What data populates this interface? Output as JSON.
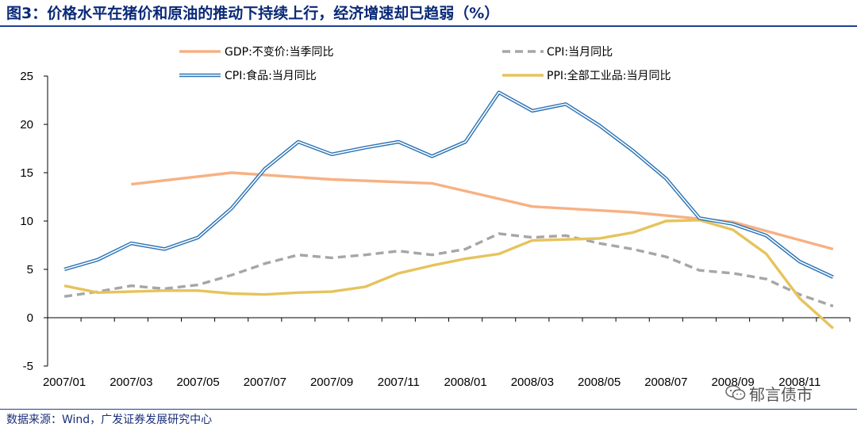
{
  "figure_title": "图3：价格水平在猪价和原油的推动下持续上行，经济增速却已趋弱（%）",
  "source_note": "数据来源：Wind，广发证券发展研究中心",
  "watermark": "郁言债市",
  "chart_data": {
    "type": "line",
    "ylim": [
      -5,
      25
    ],
    "yticks": [
      -5,
      0,
      5,
      10,
      15,
      20,
      25
    ],
    "x_tick_labels": [
      "2007/01",
      "2007/03",
      "2007/05",
      "2007/07",
      "2007/09",
      "2007/11",
      "2008/01",
      "2008/03",
      "2008/05",
      "2008/07",
      "2008/09",
      "2008/11"
    ],
    "x": [
      "2007/01",
      "2007/02",
      "2007/03",
      "2007/04",
      "2007/05",
      "2007/06",
      "2007/07",
      "2007/08",
      "2007/09",
      "2007/10",
      "2007/11",
      "2007/12",
      "2008/01",
      "2008/02",
      "2008/03",
      "2008/04",
      "2008/05",
      "2008/06",
      "2008/07",
      "2008/08",
      "2008/09",
      "2008/10",
      "2008/11",
      "2008/12"
    ],
    "series": [
      {
        "name": "GDP:不变价:当季同比",
        "color": "#f7b183",
        "style": "solid",
        "values": [
          null,
          null,
          13.8,
          null,
          null,
          15.0,
          null,
          null,
          14.3,
          null,
          null,
          13.9,
          null,
          null,
          11.5,
          null,
          null,
          10.9,
          null,
          null,
          9.9,
          null,
          null,
          7.1
        ]
      },
      {
        "name": "CPI:当月同比",
        "color": "#a6a6a6",
        "style": "dashed",
        "values": [
          2.2,
          2.7,
          3.3,
          3.0,
          3.4,
          4.4,
          5.6,
          6.5,
          6.2,
          6.5,
          6.9,
          6.5,
          7.1,
          8.7,
          8.3,
          8.5,
          7.7,
          7.1,
          6.3,
          4.9,
          4.6,
          4.0,
          2.4,
          1.2
        ]
      },
      {
        "name": "CPI:食品:当月同比",
        "color": "#2e75b6",
        "style": "double",
        "values": [
          5.0,
          6.0,
          7.7,
          7.1,
          8.3,
          11.3,
          15.4,
          18.2,
          16.9,
          17.6,
          18.2,
          16.7,
          18.2,
          23.3,
          21.4,
          22.1,
          19.9,
          17.3,
          14.4,
          10.3,
          9.7,
          8.5,
          5.8,
          4.2
        ]
      },
      {
        "name": "PPI:全部工业品:当月同比",
        "color": "#e6c35c",
        "style": "solid",
        "values": [
          3.3,
          2.6,
          2.7,
          2.8,
          2.8,
          2.5,
          2.4,
          2.6,
          2.7,
          3.2,
          4.6,
          5.4,
          6.1,
          6.6,
          8.0,
          8.1,
          8.2,
          8.8,
          10.0,
          10.1,
          9.1,
          6.6,
          2.0,
          -1.1
        ]
      }
    ]
  }
}
